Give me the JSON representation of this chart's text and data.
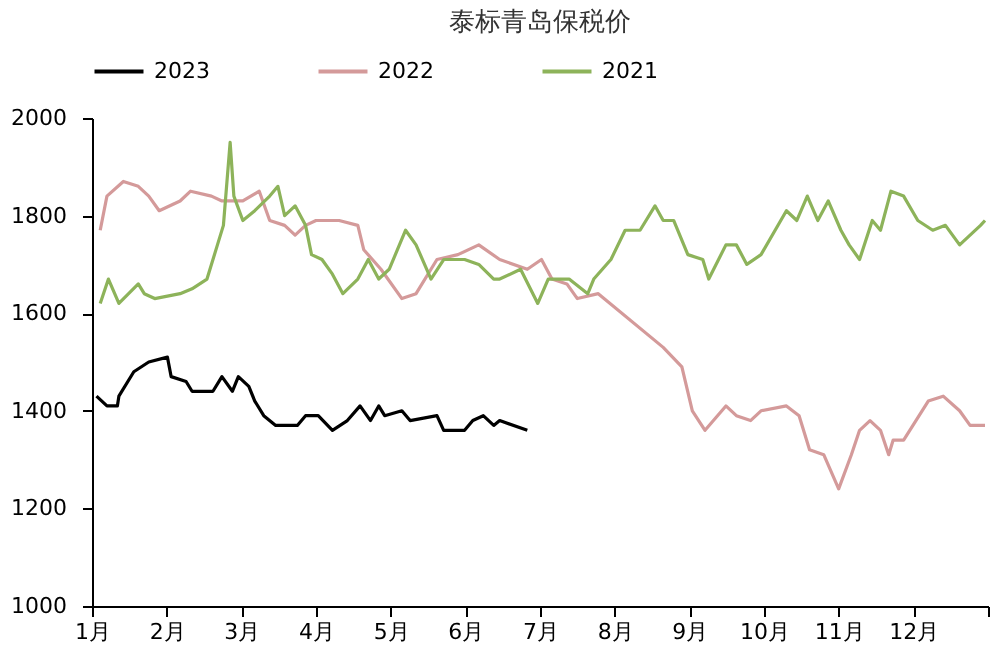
{
  "chart_data": {
    "type": "line",
    "title": "泰标青岛保税价",
    "xlim": [
      1,
      13
    ],
    "xticks": [
      {
        "value": 1,
        "label": "1月"
      },
      {
        "value": 2,
        "label": "2月"
      },
      {
        "value": 3,
        "label": "3月"
      },
      {
        "value": 4,
        "label": "4月"
      },
      {
        "value": 5,
        "label": "5月"
      },
      {
        "value": 6,
        "label": "6月"
      },
      {
        "value": 7,
        "label": "7月"
      },
      {
        "value": 8,
        "label": "8月"
      },
      {
        "value": 9,
        "label": "9月"
      },
      {
        "value": 10,
        "label": "10月"
      },
      {
        "value": 11,
        "label": "11月"
      },
      {
        "value": 12,
        "label": "12月"
      },
      {
        "value": 13,
        "label": null
      }
    ],
    "ylim": [
      1000,
      2000
    ],
    "yticks": [
      1000,
      1200,
      1400,
      1600,
      1800,
      2000
    ],
    "grid": false,
    "legend": "top",
    "marker": "none",
    "line_style": "solid",
    "series": [
      {
        "name": "2023",
        "color": "#000000",
        "x": [
          1.06,
          1.2,
          1.34,
          1.36,
          1.56,
          1.76,
          2.01,
          2.06,
          2.26,
          2.34,
          2.62,
          2.74,
          2.88,
          2.96,
          3.1,
          3.18,
          3.3,
          3.46,
          3.75,
          3.86,
          4.03,
          4.22,
          4.42,
          4.59,
          4.73,
          4.84,
          4.92,
          5.15,
          5.26,
          5.62,
          5.71,
          5.9,
          5.99,
          6.1,
          6.24,
          6.38,
          6.46,
          6.83
        ],
        "values": [
          1430,
          1410,
          1410,
          1430,
          1480,
          1500,
          1510,
          1470,
          1460,
          1440,
          1440,
          1470,
          1440,
          1470,
          1450,
          1420,
          1390,
          1370,
          1370,
          1390,
          1390,
          1360,
          1380,
          1410,
          1380,
          1410,
          1390,
          1400,
          1380,
          1390,
          1360,
          1360,
          1360,
          1380,
          1390,
          1370,
          1380,
          1360
        ]
      },
      {
        "name": "2022",
        "color": "#d49a9a",
        "x": [
          1.11,
          1.2,
          1.42,
          1.62,
          1.76,
          1.9,
          2.18,
          2.32,
          2.6,
          2.74,
          3.02,
          3.24,
          3.38,
          3.58,
          3.72,
          3.86,
          4.0,
          4.31,
          4.56,
          4.64,
          4.87,
          5.15,
          5.34,
          5.62,
          5.9,
          6.18,
          6.46,
          6.83,
          7.02,
          7.16,
          7.36,
          7.5,
          7.78,
          8.65,
          8.9,
          9.04,
          9.21,
          9.49,
          9.63,
          9.82,
          9.96,
          10.3,
          10.47,
          10.61,
          10.8,
          11.0,
          11.17,
          11.28,
          11.42,
          11.56,
          11.67,
          11.73,
          11.87,
          12.2,
          12.4,
          12.62,
          12.76,
          12.96
        ],
        "values": [
          1770,
          1840,
          1870,
          1860,
          1840,
          1810,
          1830,
          1850,
          1840,
          1830,
          1830,
          1850,
          1790,
          1780,
          1760,
          1780,
          1790,
          1790,
          1780,
          1730,
          1690,
          1630,
          1640,
          1710,
          1720,
          1740,
          1710,
          1690,
          1710,
          1670,
          1660,
          1630,
          1640,
          1530,
          1490,
          1400,
          1360,
          1410,
          1390,
          1380,
          1400,
          1410,
          1390,
          1320,
          1310,
          1240,
          1310,
          1360,
          1380,
          1360,
          1310,
          1340,
          1340,
          1420,
          1430,
          1400,
          1370,
          1370
        ]
      },
      {
        "name": "2021",
        "color": "#8db35a",
        "x": [
          1.11,
          1.22,
          1.36,
          1.62,
          1.7,
          1.84,
          2.18,
          2.34,
          2.54,
          2.68,
          2.76,
          2.85,
          2.9,
          3.02,
          3.18,
          3.38,
          3.49,
          3.58,
          3.72,
          3.86,
          3.94,
          4.08,
          4.22,
          4.36,
          4.56,
          4.7,
          4.84,
          4.98,
          5.2,
          5.34,
          5.54,
          5.71,
          5.99,
          6.18,
          6.38,
          6.46,
          6.74,
          6.97,
          7.11,
          7.39,
          7.64,
          7.72,
          7.95,
          8.14,
          8.34,
          8.54,
          8.65,
          8.79,
          8.98,
          9.18,
          9.26,
          9.49,
          9.63,
          9.77,
          9.96,
          10.3,
          10.44,
          10.58,
          10.72,
          10.86,
          11.03,
          11.14,
          11.28,
          11.45,
          11.56,
          11.7,
          11.87,
          12.06,
          12.26,
          12.43,
          12.62,
          12.76,
          12.9,
          12.96
        ],
        "values": [
          1620,
          1670,
          1620,
          1660,
          1640,
          1630,
          1640,
          1650,
          1670,
          1740,
          1780,
          1950,
          1840,
          1790,
          1810,
          1840,
          1860,
          1800,
          1820,
          1780,
          1720,
          1710,
          1680,
          1640,
          1670,
          1710,
          1670,
          1690,
          1770,
          1740,
          1670,
          1710,
          1710,
          1700,
          1670,
          1670,
          1690,
          1620,
          1670,
          1670,
          1640,
          1670,
          1710,
          1770,
          1770,
          1820,
          1790,
          1790,
          1720,
          1710,
          1670,
          1740,
          1740,
          1700,
          1720,
          1810,
          1790,
          1840,
          1790,
          1830,
          1770,
          1740,
          1710,
          1790,
          1770,
          1850,
          1840,
          1790,
          1770,
          1780,
          1740,
          1760,
          1780,
          1790
        ]
      }
    ]
  }
}
